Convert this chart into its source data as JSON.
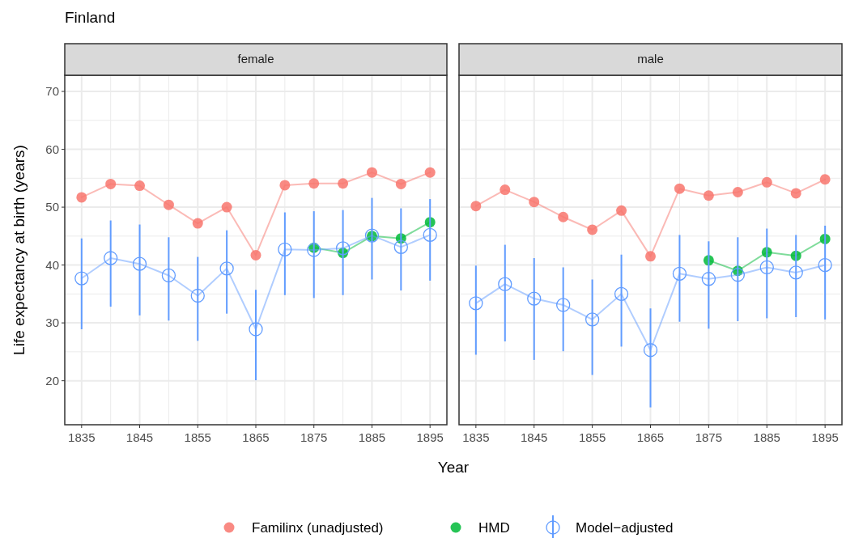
{
  "chart_data": [
    {
      "type": "line",
      "title": "Finland",
      "subtitle": "female",
      "xlabel": "Year",
      "ylabel": "Life expectancy at birth (years)",
      "legend": "bottom",
      "grid": true,
      "marker": "circle",
      "x": [
        1835,
        1840,
        1845,
        1850,
        1855,
        1860,
        1865,
        1870,
        1875,
        1880,
        1885,
        1890,
        1895
      ],
      "xlim": [
        1832.1,
        1897.9
      ],
      "xticks": [
        1835,
        1845,
        1855,
        1865,
        1875,
        1885,
        1895
      ],
      "ylim": [
        12.4,
        72.8
      ],
      "yticks": [
        20,
        30,
        40,
        50,
        60,
        70
      ],
      "series": [
        {
          "name": "Familinx (unadjusted)",
          "color": "#f8766d",
          "values": [
            51.7,
            54,
            53.7,
            50.4,
            47.2,
            50,
            41.7,
            53.8,
            54.1,
            54.1,
            56,
            54,
            56
          ]
        },
        {
          "name": "HMD",
          "color": "#00ba38",
          "x": [
            1875,
            1880,
            1885,
            1890,
            1895
          ],
          "values": [
            43,
            42.1,
            45,
            44.6,
            47.4
          ]
        },
        {
          "name": "Model−adjusted",
          "color": "#619cff",
          "values": [
            37.7,
            41.2,
            40.2,
            38.2,
            34.7,
            39.4,
            28.9,
            42.7,
            42.6,
            42.9,
            45.1,
            43.1,
            45.2
          ],
          "errors": [
            [
              28.9,
              44.6
            ],
            [
              32.8,
              47.7
            ],
            [
              31.3,
              47.0
            ],
            [
              30.4,
              44.8
            ],
            [
              26.9,
              41.4
            ],
            [
              31.6,
              46.0
            ],
            [
              20.1,
              35.7
            ],
            [
              34.8,
              49.1
            ],
            [
              34.3,
              49.3
            ],
            [
              34.8,
              49.5
            ],
            [
              37.5,
              51.6
            ],
            [
              35.6,
              49.8
            ],
            [
              37.3,
              51.4
            ]
          ]
        }
      ]
    },
    {
      "type": "line",
      "subtitle": "male",
      "grid": true,
      "marker": "circle",
      "tick_labels": "x",
      "x": [
        1835,
        1840,
        1845,
        1850,
        1855,
        1860,
        1865,
        1870,
        1875,
        1880,
        1885,
        1890,
        1895
      ],
      "xlim": [
        1832.1,
        1897.9
      ],
      "xticks": [
        1835,
        1845,
        1855,
        1865,
        1875,
        1885,
        1895
      ],
      "ylim": [
        12.4,
        72.8
      ],
      "yticks": [
        20,
        30,
        40,
        50,
        60,
        70
      ],
      "series": [
        {
          "color": "#f8766d",
          "values": [
            50.2,
            53.0,
            50.9,
            48.3,
            46.1,
            49.4,
            41.5,
            53.2,
            52.0,
            52.6,
            54.3,
            52.4,
            54.8
          ]
        },
        {
          "color": "#00ba38",
          "x": [
            1875,
            1880,
            1885,
            1890,
            1895
          ],
          "values": [
            40.8,
            39.0,
            42.2,
            41.6,
            44.5
          ]
        },
        {
          "color": "#619cff",
          "values": [
            33.4,
            36.7,
            34.2,
            33.1,
            30.6,
            35.0,
            25.3,
            38.5,
            37.6,
            38.3,
            39.6,
            38.7,
            40.0
          ],
          "errors": [
            [
              24.5,
              39.9
            ],
            [
              26.8,
              43.5
            ],
            [
              23.6,
              41.2
            ],
            [
              25.1,
              39.6
            ],
            [
              21.0,
              37.5
            ],
            [
              25.9,
              41.8
            ],
            [
              15.4,
              32.5
            ],
            [
              30.2,
              45.2
            ],
            [
              29.0,
              44.1
            ],
            [
              30.3,
              44.8
            ],
            [
              30.8,
              46.3
            ],
            [
              31.0,
              45.2
            ],
            [
              30.6,
              46.8
            ]
          ]
        }
      ]
    }
  ]
}
